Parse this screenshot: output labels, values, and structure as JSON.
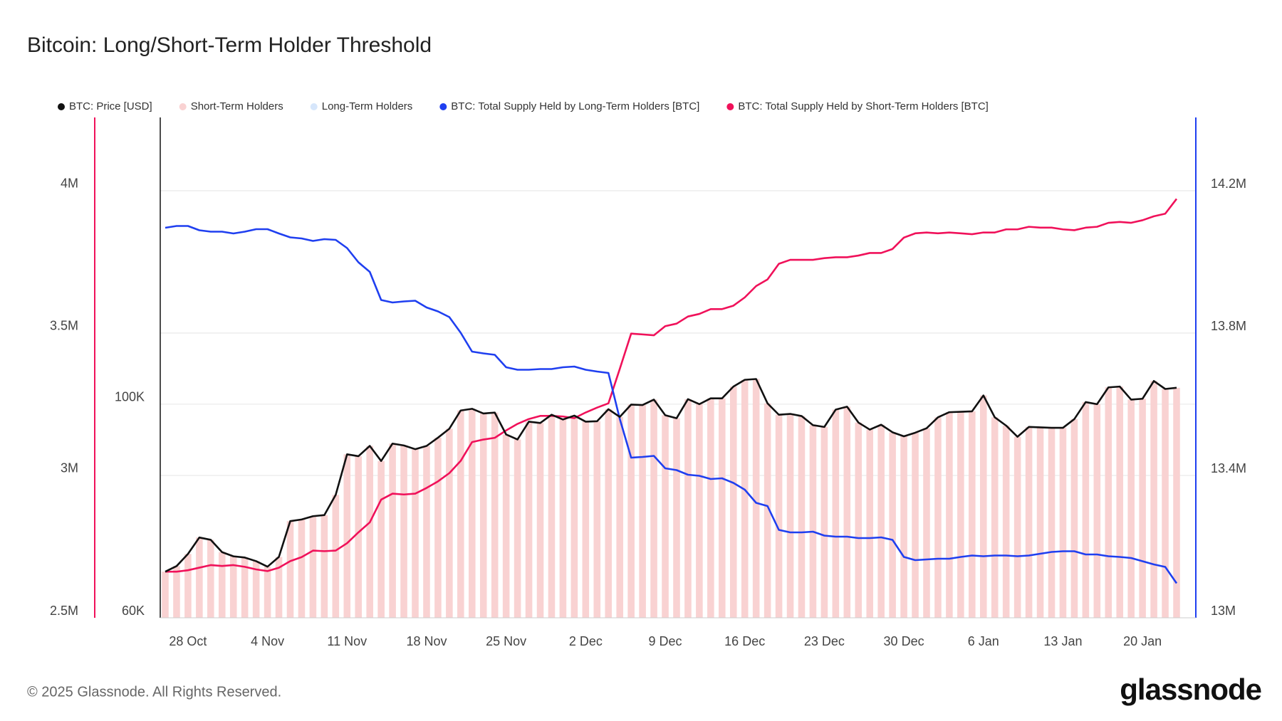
{
  "chart_data": {
    "type": "combo",
    "title": "Bitcoin: Long/Short-Term Holder Threshold",
    "categories": [
      null,
      null,
      "28 Oct",
      null,
      null,
      null,
      null,
      null,
      null,
      "4 Nov",
      null,
      null,
      null,
      null,
      null,
      null,
      "11 Nov",
      null,
      null,
      null,
      null,
      null,
      null,
      "18 Nov",
      null,
      null,
      null,
      null,
      null,
      null,
      "25 Nov",
      null,
      null,
      null,
      null,
      null,
      null,
      "2 Dec",
      null,
      null,
      null,
      null,
      null,
      null,
      "9 Dec",
      null,
      null,
      null,
      null,
      null,
      null,
      "16 Dec",
      null,
      null,
      null,
      null,
      null,
      null,
      "23 Dec",
      null,
      null,
      null,
      null,
      null,
      null,
      "30 Dec",
      null,
      null,
      null,
      null,
      null,
      null,
      "6 Jan",
      null,
      null,
      null,
      null,
      null,
      null,
      "13 Jan",
      null,
      null,
      null,
      null,
      null,
      null,
      "20 Jan",
      null,
      null,
      null
    ],
    "ylim": [
      2500000,
      4257000
    ],
    "yticks": [
      {
        "value": 2500000,
        "label": "2.5M"
      },
      {
        "value": 3000000,
        "label": "3M"
      },
      {
        "value": 3500000,
        "label": "3.5M"
      },
      {
        "value": 4000000,
        "label": "4M"
      }
    ],
    "y2lim": [
      13000000,
      14406000
    ],
    "y2ticks": [
      {
        "value": 13000000,
        "label": "13M"
      },
      {
        "value": 13400000,
        "label": "13.4M"
      },
      {
        "value": 13800000,
        "label": "13.8M"
      },
      {
        "value": 14200000,
        "label": "14.2M"
      }
    ],
    "y3lim": [
      60000,
      198500
    ],
    "y3log": true,
    "y3ticks": [
      {
        "value": 60000,
        "label": "60K"
      },
      {
        "value": 100000,
        "label": "100K"
      }
    ],
    "grid": true,
    "legend": "top-left",
    "series": [
      {
        "name": "BTC: Price [USD]",
        "type": "line",
        "axis": "y3",
        "color": "#111111",
        "values": [
          67000,
          67900,
          69900,
          72700,
          72300,
          70200,
          69500,
          69300,
          68700,
          67800,
          69400,
          75600,
          75900,
          76500,
          76700,
          80500,
          88700,
          88300,
          90500,
          87300,
          91000,
          90600,
          89800,
          90500,
          92300,
          94300,
          98500,
          98900,
          97800,
          98000,
          93000,
          91900,
          95900,
          95600,
          97500,
          96400,
          97300,
          95900,
          96000,
          98800,
          97000,
          99900,
          99800,
          101100,
          97400,
          96700,
          101200,
          100000,
          101400,
          101400,
          104300,
          106000,
          106200,
          100200,
          97500,
          97700,
          97200,
          95100,
          94700,
          98700,
          99400,
          95700,
          94100,
          95200,
          93500,
          92600,
          93400,
          94400,
          96900,
          98100,
          98200,
          98300,
          102100,
          96900,
          95000,
          92500,
          94700,
          94600,
          94500,
          94500,
          96500,
          100500,
          100000,
          104100,
          104300,
          101100,
          101300,
          105700,
          103700,
          104000
        ]
      },
      {
        "name": "Short-Term Holders",
        "type": "bar",
        "axis": "y3",
        "color": "#f9d2d2",
        "values": [
          67000,
          67900,
          69900,
          72700,
          72300,
          70200,
          69500,
          69300,
          68700,
          67800,
          69400,
          75600,
          75900,
          76500,
          76700,
          80500,
          88700,
          88300,
          90500,
          87300,
          91000,
          90600,
          89800,
          90500,
          92300,
          94300,
          98500,
          98900,
          97800,
          98000,
          93000,
          91900,
          95900,
          95600,
          97500,
          96400,
          97300,
          95900,
          96000,
          98800,
          97000,
          99900,
          99800,
          101100,
          97400,
          96700,
          101200,
          100000,
          101400,
          101400,
          104300,
          106000,
          106200,
          100200,
          97500,
          97700,
          97200,
          95100,
          94700,
          98700,
          99400,
          95700,
          94100,
          95200,
          93500,
          92600,
          93400,
          94400,
          96900,
          98100,
          98200,
          98300,
          102100,
          96900,
          95000,
          92500,
          94700,
          94600,
          94500,
          94500,
          96500,
          100500,
          100000,
          104100,
          104300,
          101100,
          101300,
          105700,
          103700,
          104000
        ]
      },
      {
        "name": "Long-Term Holders",
        "type": "bar",
        "axis": "y3",
        "color": "#d6e6fb",
        "values": [
          null,
          null,
          null,
          null,
          null,
          null,
          null,
          null,
          null,
          null,
          null,
          null,
          null,
          null,
          null,
          null,
          null,
          null,
          null,
          null,
          null,
          null,
          null,
          null,
          null,
          null,
          null,
          null,
          null,
          null,
          null,
          null,
          null,
          null,
          null,
          null,
          null,
          null,
          null,
          null,
          null,
          null,
          null,
          null,
          null,
          null,
          null,
          null,
          null,
          null,
          null,
          null,
          null,
          null,
          null,
          null,
          null,
          null,
          null,
          null,
          null,
          null,
          null,
          null,
          null,
          null,
          null,
          null,
          null,
          null,
          null,
          null,
          null,
          null,
          null,
          null,
          null,
          null,
          null,
          null,
          null,
          null,
          null,
          null,
          null,
          null,
          null,
          null,
          null,
          null
        ]
      },
      {
        "name": "BTC: Total Supply Held by Long-Term Holders [BTC]",
        "type": "line",
        "axis": "y2",
        "color": "#1f3ff0",
        "values": [
          14096000,
          14101000,
          14101000,
          14089000,
          14085000,
          14085000,
          14080000,
          14085000,
          14092000,
          14092000,
          14080000,
          14069000,
          14066000,
          14059000,
          14064000,
          14062000,
          14039000,
          13999000,
          13972000,
          13893000,
          13886000,
          13889000,
          13891000,
          13872000,
          13861000,
          13845000,
          13801000,
          13748000,
          13743000,
          13739000,
          13704000,
          13697000,
          13697000,
          13699000,
          13699000,
          13704000,
          13706000,
          13697000,
          13692000,
          13688000,
          13559000,
          13450000,
          13452000,
          13455000,
          13420000,
          13415000,
          13402000,
          13399000,
          13390000,
          13392000,
          13379000,
          13360000,
          13323000,
          13314000,
          13247000,
          13240000,
          13240000,
          13242000,
          13231000,
          13228000,
          13228000,
          13224000,
          13224000,
          13226000,
          13219000,
          13171000,
          13162000,
          13164000,
          13166000,
          13166000,
          13171000,
          13175000,
          13173000,
          13175000,
          13175000,
          13173000,
          13175000,
          13180000,
          13185000,
          13187000,
          13187000,
          13178000,
          13178000,
          13173000,
          13171000,
          13168000,
          13159000,
          13150000,
          13143000,
          13097000
        ]
      },
      {
        "name": "BTC: Total Supply Held by Short-Term Holders [BTC]",
        "type": "line",
        "axis": "y",
        "color": "#f0115a",
        "values": [
          2662000,
          2662000,
          2667000,
          2676000,
          2685000,
          2682000,
          2685000,
          2679000,
          2670000,
          2664000,
          2676000,
          2699000,
          2713000,
          2736000,
          2734000,
          2736000,
          2762000,
          2800000,
          2835000,
          2915000,
          2936000,
          2933000,
          2936000,
          2956000,
          2979000,
          3008000,
          3051000,
          3117000,
          3126000,
          3132000,
          3158000,
          3181000,
          3198000,
          3209000,
          3209000,
          3207000,
          3201000,
          3221000,
          3238000,
          3253000,
          3374000,
          3498000,
          3495000,
          3492000,
          3524000,
          3533000,
          3558000,
          3567000,
          3584000,
          3584000,
          3596000,
          3625000,
          3665000,
          3688000,
          3743000,
          3757000,
          3757000,
          3757000,
          3763000,
          3766000,
          3766000,
          3772000,
          3781000,
          3781000,
          3795000,
          3835000,
          3850000,
          3853000,
          3850000,
          3853000,
          3850000,
          3847000,
          3853000,
          3853000,
          3864000,
          3864000,
          3873000,
          3870000,
          3870000,
          3864000,
          3861000,
          3870000,
          3873000,
          3887000,
          3890000,
          3887000,
          3896000,
          3910000,
          3919000,
          3971000
        ]
      }
    ]
  },
  "footer": {
    "copyright": "© 2025 Glassnode. All Rights Reserved.",
    "logo": "glassnode"
  }
}
